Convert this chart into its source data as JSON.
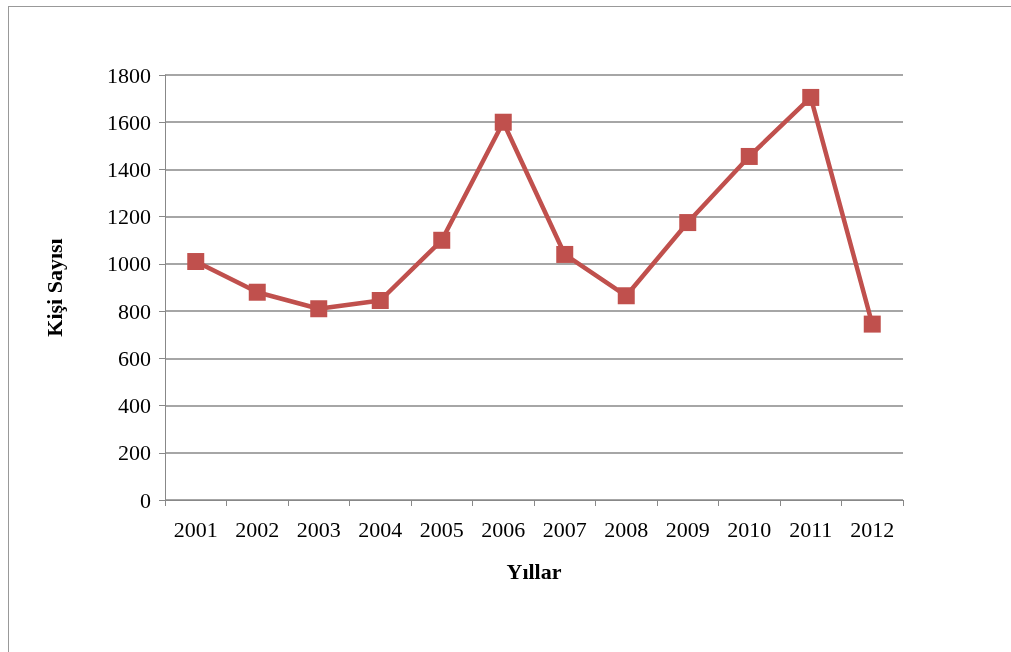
{
  "chart_data": {
    "type": "line",
    "xlabel": "Yıllar",
    "ylabel": "Kişi Sayısı",
    "categories": [
      "2001",
      "2002",
      "2003",
      "2004",
      "2005",
      "2006",
      "2007",
      "2008",
      "2009",
      "2010",
      "2011",
      "2012"
    ],
    "series": [
      {
        "color": "#c0504d",
        "values": [
          1010,
          880,
          810,
          845,
          1100,
          1600,
          1040,
          865,
          1175,
          1455,
          1705,
          745
        ]
      }
    ],
    "ylim": [
      0,
      1800
    ],
    "yticks": [
      0,
      200,
      400,
      600,
      800,
      1000,
      1200,
      1400,
      1600,
      1800
    ],
    "grid": "y",
    "marker": "square",
    "line_style": "solid"
  }
}
